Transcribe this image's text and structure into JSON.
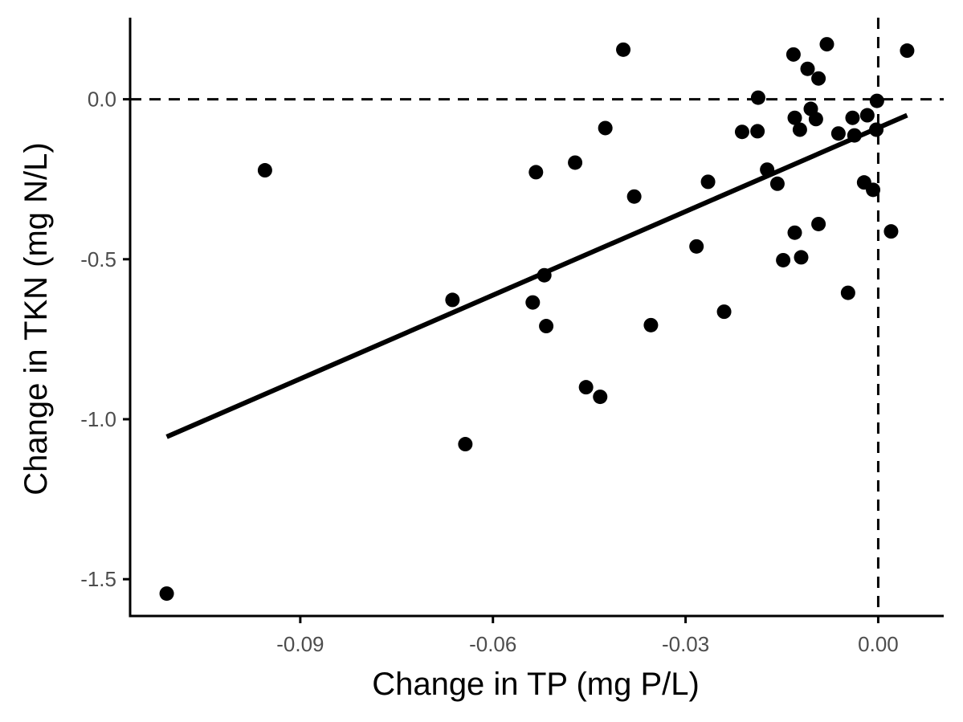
{
  "chart_data": {
    "type": "scatter",
    "xlabel": "Change in TP (mg P/L)",
    "ylabel": "Change in TKN (mg N/L)",
    "xlim": [
      -0.1165,
      0.0102
    ],
    "ylim": [
      -1.615,
      0.255
    ],
    "x_ticks": [
      {
        "value": -0.09,
        "label": "-0.09"
      },
      {
        "value": -0.06,
        "label": "-0.06"
      },
      {
        "value": -0.03,
        "label": "-0.03"
      },
      {
        "value": 0.0,
        "label": "0.00"
      }
    ],
    "y_ticks": [
      {
        "value": 0.0,
        "label": "0.0"
      },
      {
        "value": -0.5,
        "label": "-0.5"
      },
      {
        "value": -1.0,
        "label": "-1.0"
      },
      {
        "value": -1.5,
        "label": "-1.5"
      }
    ],
    "reference_lines": {
      "x": 0.0,
      "y": 0.0,
      "style": "dashed"
    },
    "fit_line": {
      "x": [
        -0.1108,
        0.0045
      ],
      "y": [
        -1.055,
        -0.05
      ]
    },
    "grid": false,
    "legend": "none",
    "colors": {
      "points": "#000000",
      "line": "#000000",
      "axis": "#000000",
      "background": "#ffffff"
    },
    "points": [
      {
        "x": -0.1108,
        "y": -1.545
      },
      {
        "x": -0.0955,
        "y": -0.222
      },
      {
        "x": -0.0663,
        "y": -0.627
      },
      {
        "x": -0.0643,
        "y": -1.078
      },
      {
        "x": -0.0538,
        "y": -0.635
      },
      {
        "x": -0.0533,
        "y": -0.228
      },
      {
        "x": -0.052,
        "y": -0.55
      },
      {
        "x": -0.0517,
        "y": -0.709
      },
      {
        "x": -0.0472,
        "y": -0.198
      },
      {
        "x": -0.0455,
        "y": -0.9
      },
      {
        "x": -0.0433,
        "y": -0.93
      },
      {
        "x": -0.0425,
        "y": -0.09
      },
      {
        "x": -0.0397,
        "y": 0.155
      },
      {
        "x": -0.038,
        "y": -0.304
      },
      {
        "x": -0.0354,
        "y": -0.706
      },
      {
        "x": -0.0283,
        "y": -0.46
      },
      {
        "x": -0.0265,
        "y": -0.258
      },
      {
        "x": -0.024,
        "y": -0.664
      },
      {
        "x": -0.0212,
        "y": -0.102
      },
      {
        "x": -0.0188,
        "y": -0.1
      },
      {
        "x": -0.0187,
        "y": 0.005
      },
      {
        "x": -0.0173,
        "y": -0.22
      },
      {
        "x": -0.0157,
        "y": -0.264
      },
      {
        "x": -0.0148,
        "y": -0.503
      },
      {
        "x": -0.0132,
        "y": 0.14
      },
      {
        "x": -0.013,
        "y": -0.058
      },
      {
        "x": -0.013,
        "y": -0.417
      },
      {
        "x": -0.0122,
        "y": -0.095
      },
      {
        "x": -0.012,
        "y": -0.494
      },
      {
        "x": -0.011,
        "y": 0.095
      },
      {
        "x": -0.0105,
        "y": -0.03
      },
      {
        "x": -0.0097,
        "y": -0.062
      },
      {
        "x": -0.0093,
        "y": 0.065
      },
      {
        "x": -0.0093,
        "y": -0.39
      },
      {
        "x": -0.008,
        "y": 0.172
      },
      {
        "x": -0.0062,
        "y": -0.107
      },
      {
        "x": -0.0047,
        "y": -0.605
      },
      {
        "x": -0.004,
        "y": -0.058
      },
      {
        "x": -0.0037,
        "y": -0.113
      },
      {
        "x": -0.0022,
        "y": -0.26
      },
      {
        "x": -0.0017,
        "y": -0.05
      },
      {
        "x": -0.0008,
        "y": -0.283
      },
      {
        "x": -0.0003,
        "y": -0.095
      },
      {
        "x": -0.0002,
        "y": -0.005
      },
      {
        "x": 0.002,
        "y": -0.413
      },
      {
        "x": 0.0045,
        "y": 0.152
      }
    ]
  }
}
